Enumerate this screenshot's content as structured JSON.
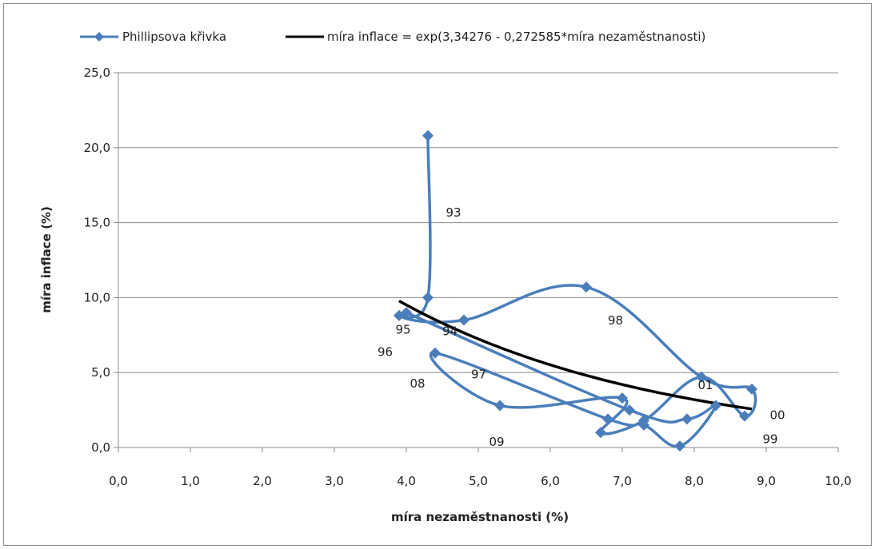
{
  "chart_data": {
    "type": "scatter",
    "xlabel": "míra nezaměstnanosti (%)",
    "ylabel": "míra inflace (%)",
    "xlim": [
      0,
      10
    ],
    "ylim": [
      0,
      25
    ],
    "x_ticks": [
      "0,0",
      "1,0",
      "2,0",
      "3,0",
      "4,0",
      "5,0",
      "6,0",
      "7,0",
      "8,0",
      "9,0",
      "10,0"
    ],
    "y_ticks": [
      "0,0",
      "5,0",
      "10,0",
      "15,0",
      "20,0",
      "25,0"
    ],
    "grid": "horizontal",
    "legend_position": "top",
    "series": [
      {
        "name": "Phillipsova křivka",
        "kind": "smoothed-line-with-diamond-markers",
        "color": "#4a7ebb",
        "points": [
          {
            "x": 4.3,
            "y": 20.8
          },
          {
            "x": 4.3,
            "y": 10.0
          },
          {
            "x": 3.9,
            "y": 8.8
          },
          {
            "x": 4.8,
            "y": 8.5
          },
          {
            "x": 6.5,
            "y": 10.7
          },
          {
            "x": 8.1,
            "y": 4.7
          },
          {
            "x": 8.8,
            "y": 3.9
          },
          {
            "x": 8.7,
            "y": 2.1
          },
          {
            "x": 8.1,
            "y": 4.7
          },
          {
            "x": 7.3,
            "y": 1.8
          },
          {
            "x": 6.7,
            "y": 1.0
          },
          {
            "x": 7.0,
            "y": 3.3
          },
          {
            "x": 5.3,
            "y": 2.8
          },
          {
            "x": 4.4,
            "y": 6.3
          },
          {
            "x": 6.8,
            "y": 1.9
          },
          {
            "x": 7.3,
            "y": 1.5
          },
          {
            "x": 7.8,
            "y": 0.1
          },
          {
            "x": 8.3,
            "y": 2.8
          },
          {
            "x": 7.9,
            "y": 1.9
          },
          {
            "x": 7.1,
            "y": 2.5
          },
          {
            "x": 4.0,
            "y": 9.0
          }
        ]
      },
      {
        "name": "míra inflace = exp(3,34276 - 0,272585*míra nezaměstnanosti)",
        "kind": "line",
        "color": "#000000",
        "x_range": [
          3.9,
          8.8
        ],
        "intercept": 3.34276,
        "slope": -0.272585
      }
    ],
    "annotations": [
      {
        "text": "93",
        "x": 4.55,
        "y": 15.4
      },
      {
        "text": "95",
        "x": 3.85,
        "y": 7.6
      },
      {
        "text": "94",
        "x": 4.5,
        "y": 7.5
      },
      {
        "text": "96",
        "x": 3.6,
        "y": 6.1
      },
      {
        "text": "98",
        "x": 6.8,
        "y": 8.2
      },
      {
        "text": "97",
        "x": 4.9,
        "y": 4.6
      },
      {
        "text": "08",
        "x": 4.05,
        "y": 4.0
      },
      {
        "text": "01",
        "x": 8.05,
        "y": 3.9
      },
      {
        "text": "00",
        "x": 9.05,
        "y": 1.9
      },
      {
        "text": "99",
        "x": 8.95,
        "y": 0.3
      },
      {
        "text": "09",
        "x": 5.15,
        "y": 0.1
      }
    ]
  }
}
